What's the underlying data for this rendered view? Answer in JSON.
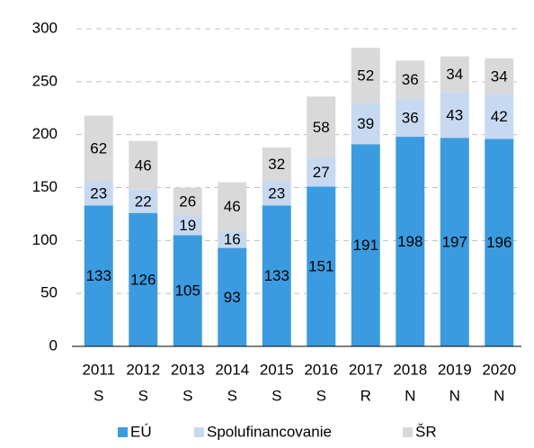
{
  "chart_data": {
    "type": "stacked_bar",
    "categories": [
      [
        "2011",
        "S"
      ],
      [
        "2012",
        "S"
      ],
      [
        "2013",
        "S"
      ],
      [
        "2014",
        "S"
      ],
      [
        "2015",
        "S"
      ],
      [
        "2016",
        "S"
      ],
      [
        "2017",
        "R"
      ],
      [
        "2018",
        "N"
      ],
      [
        "2019",
        "N"
      ],
      [
        "2020",
        "N"
      ]
    ],
    "series": [
      {
        "name": "EÚ",
        "color": "#3b9be0",
        "values": [
          133,
          126,
          105,
          93,
          133,
          151,
          191,
          198,
          197,
          196
        ]
      },
      {
        "name": "Spolufinancovanie",
        "color": "#c6d9f1",
        "values": [
          23,
          22,
          19,
          16,
          23,
          27,
          39,
          36,
          43,
          42
        ]
      },
      {
        "name": "ŠR",
        "color": "#d9d9d9",
        "values": [
          62,
          46,
          26,
          46,
          32,
          58,
          52,
          36,
          34,
          34
        ]
      }
    ],
    "ylim": [
      0,
      300
    ],
    "yticks": [
      0,
      50,
      100,
      150,
      200,
      250,
      300
    ],
    "grid": true,
    "legend": "bottom"
  }
}
